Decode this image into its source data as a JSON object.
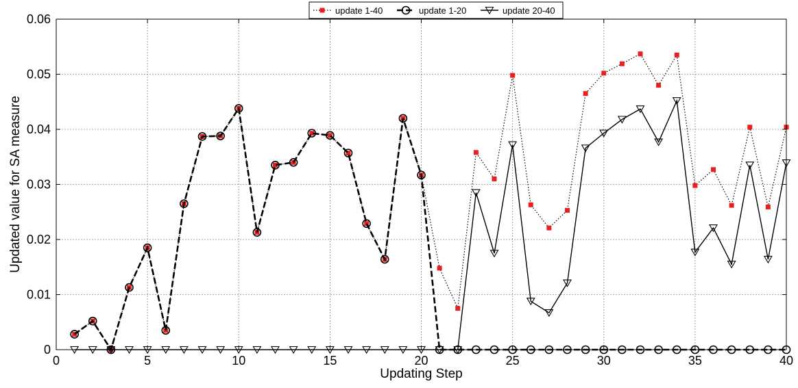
{
  "chart_data": {
    "type": "line",
    "title": "",
    "xlabel": "Updating Step",
    "ylabel": "Updated value for SA measure",
    "xlim": [
      0,
      40
    ],
    "ylim": [
      0,
      0.06
    ],
    "x_ticks": [
      0,
      5,
      10,
      15,
      20,
      25,
      30,
      35,
      40
    ],
    "y_ticks": [
      0,
      0.01,
      0.02,
      0.03,
      0.04,
      0.05,
      0.06
    ],
    "y_tick_labels": [
      "0",
      "0.01",
      "0.02",
      "0.03",
      "0.04",
      "0.05",
      "0.06"
    ],
    "grid": true,
    "legend_position": "top-center",
    "series": [
      {
        "name": "update 1-40",
        "line_style": "dotted",
        "marker": "square",
        "marker_color": "#e8201e",
        "x": [
          1,
          2,
          3,
          4,
          5,
          6,
          7,
          8,
          9,
          10,
          11,
          12,
          13,
          14,
          15,
          16,
          17,
          18,
          19,
          20,
          21,
          22,
          23,
          24,
          25,
          26,
          27,
          28,
          29,
          30,
          31,
          32,
          33,
          34,
          35,
          36,
          37,
          38,
          39,
          40
        ],
        "values": [
          0.0028,
          0.0052,
          0.0,
          0.0113,
          0.0185,
          0.0035,
          0.0265,
          0.0387,
          0.0388,
          0.0438,
          0.0213,
          0.0335,
          0.034,
          0.0393,
          0.0389,
          0.0357,
          0.0229,
          0.0164,
          0.042,
          0.0317,
          0.0148,
          0.0075,
          0.0358,
          0.031,
          0.0498,
          0.0263,
          0.0221,
          0.0253,
          0.0465,
          0.0502,
          0.0519,
          0.0537,
          0.048,
          0.0535,
          0.0298,
          0.0327,
          0.0262,
          0.0404,
          0.0259,
          0.0404
        ]
      },
      {
        "name": "update 1-20",
        "line_style": "dashed",
        "marker": "circle",
        "x": [
          1,
          2,
          3,
          4,
          5,
          6,
          7,
          8,
          9,
          10,
          11,
          12,
          13,
          14,
          15,
          16,
          17,
          18,
          19,
          20,
          21,
          22,
          23,
          24,
          25,
          26,
          27,
          28,
          29,
          30,
          31,
          32,
          33,
          34,
          35,
          36,
          37,
          38,
          39,
          40
        ],
        "values": [
          0.0028,
          0.0052,
          0.0,
          0.0113,
          0.0185,
          0.0035,
          0.0265,
          0.0387,
          0.0388,
          0.0438,
          0.0213,
          0.0335,
          0.034,
          0.0393,
          0.0389,
          0.0357,
          0.0229,
          0.0164,
          0.042,
          0.0317,
          0,
          0,
          0,
          0,
          0,
          0,
          0,
          0,
          0,
          0,
          0,
          0,
          0,
          0,
          0,
          0,
          0,
          0,
          0,
          0
        ]
      },
      {
        "name": "update 20-40",
        "line_style": "solid",
        "marker": "triangle-down",
        "x": [
          1,
          2,
          3,
          4,
          5,
          6,
          7,
          8,
          9,
          10,
          11,
          12,
          13,
          14,
          15,
          16,
          17,
          18,
          19,
          20,
          21,
          22,
          23,
          24,
          25,
          26,
          27,
          28,
          29,
          30,
          31,
          32,
          33,
          34,
          35,
          36,
          37,
          38,
          39,
          40
        ],
        "values": [
          0,
          0,
          0,
          0,
          0,
          0,
          0,
          0,
          0,
          0,
          0,
          0,
          0,
          0,
          0,
          0,
          0,
          0,
          0,
          0,
          0,
          0,
          0.0285,
          0.0175,
          0.0372,
          0.0088,
          0.0067,
          0.0121,
          0.0366,
          0.0393,
          0.0418,
          0.0437,
          0.0377,
          0.0452,
          0.0177,
          0.0221,
          0.0155,
          0.0335,
          0.0164,
          0.0339
        ]
      }
    ]
  }
}
